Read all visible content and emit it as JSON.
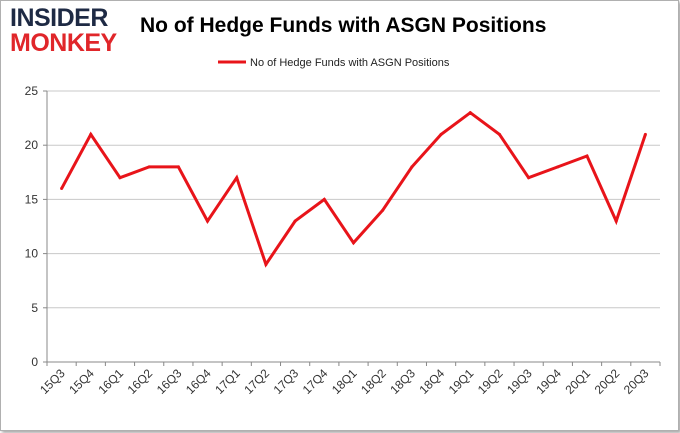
{
  "header": {
    "logo_top": "INSIDER",
    "logo_bottom": "MONKEY",
    "title": "No of Hedge Funds with ASGN Positions"
  },
  "colors": {
    "line": "#e8141a",
    "grid": "#c8c8c8",
    "axis": "#888888"
  },
  "chart_data": {
    "type": "line",
    "title": "No of Hedge Funds with ASGN Positions",
    "xlabel": "",
    "ylabel": "",
    "ylim": [
      0,
      25
    ],
    "yticks": [
      0,
      5,
      10,
      15,
      20,
      25
    ],
    "grid": true,
    "legend_position": "top-center",
    "categories": [
      "15Q3",
      "15Q4",
      "16Q1",
      "16Q2",
      "16Q3",
      "16Q4",
      "17Q1",
      "17Q2",
      "17Q3",
      "17Q4",
      "18Q1",
      "18Q2",
      "18Q3",
      "18Q4",
      "19Q1",
      "19Q2",
      "19Q3",
      "19Q4",
      "20Q1",
      "20Q2",
      "20Q3"
    ],
    "series": [
      {
        "name": "No of Hedge Funds with ASGN Positions",
        "values": [
          16,
          21,
          17,
          18,
          18,
          13,
          17,
          9,
          13,
          15,
          11,
          14,
          18,
          21,
          23,
          21,
          17,
          18,
          19,
          13,
          21
        ]
      }
    ]
  }
}
